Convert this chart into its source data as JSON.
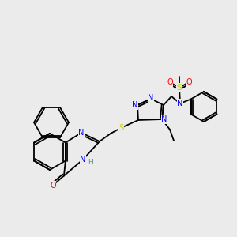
{
  "bg_color": "#ebebeb",
  "bond_color": "#000000",
  "atom_colors": {
    "N": "#0000ff",
    "O": "#ff0000",
    "S": "#cccc00",
    "H": "#5a9090",
    "C": "#000000"
  },
  "title": ""
}
